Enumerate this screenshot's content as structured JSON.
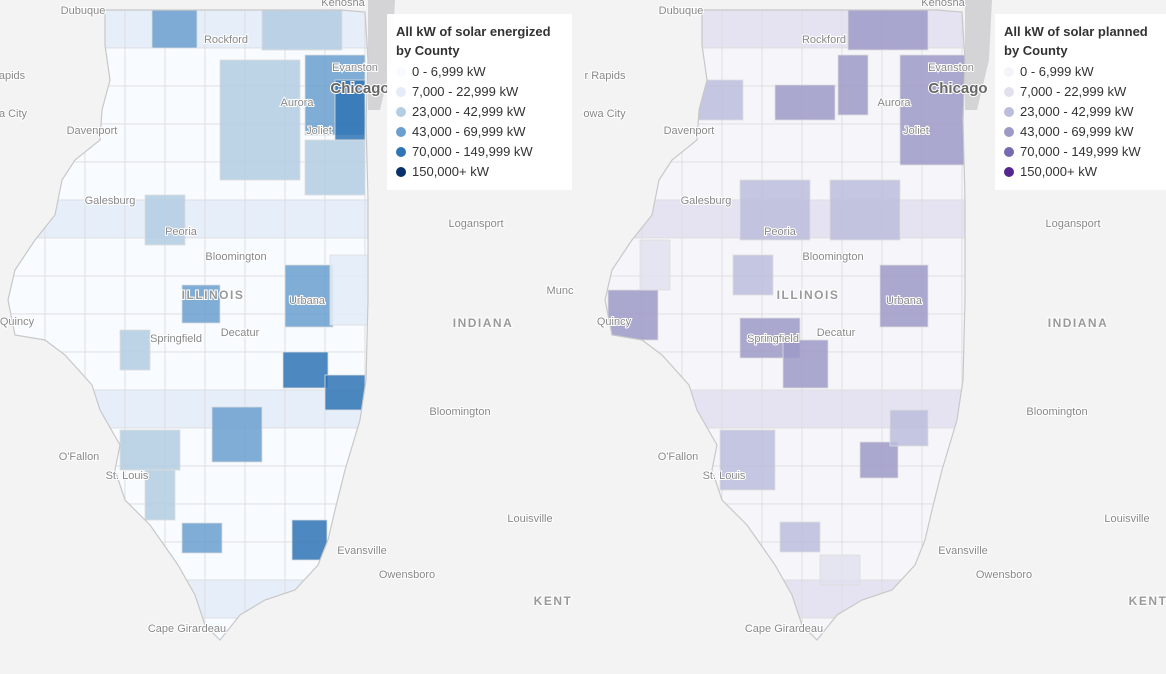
{
  "maps": [
    {
      "legend": {
        "title": "All kW of solar energized by County",
        "items": [
          {
            "label": "0 - 6,999 kW",
            "color": "#f7fbff"
          },
          {
            "label": "7,000 - 22,999 kW",
            "color": "#e3ecf8"
          },
          {
            "label": "23,000 - 42,999 kW",
            "color": "#b3cde3"
          },
          {
            "label": "43,000 - 69,999 kW",
            "color": "#6a9fcf"
          },
          {
            "label": "70,000 - 149,999 kW",
            "color": "#2f74b5"
          },
          {
            "label": "150,000+ kW",
            "color": "#08306b"
          }
        ]
      },
      "places": [
        "Dubuque",
        "Kenosha",
        "Rockford",
        "apids",
        "Evanston",
        "Chicago",
        "Aurora",
        "a City",
        "Davenport",
        "Joliet",
        "Galesburg",
        "Logansport",
        "Peoria",
        "Bloomington",
        "ILLINOIS",
        "Munc",
        "Quincy",
        "INDIANA",
        "Springfield",
        "Decatur",
        "Urbana",
        "Bloomington",
        "O'Fallon",
        "St. Louis",
        "Louisville",
        "Evansville",
        "Owensboro",
        "KENT",
        "Cape Girardeau"
      ]
    },
    {
      "legend": {
        "title": "All kW of solar planned by County",
        "items": [
          {
            "label": "0 - 6,999 kW",
            "color": "#f5f4f9"
          },
          {
            "label": "7,000 - 22,999 kW",
            "color": "#e2e0ef"
          },
          {
            "label": "23,000 - 42,999 kW",
            "color": "#bcbddc"
          },
          {
            "label": "43,000 - 69,999 kW",
            "color": "#9e9ac8"
          },
          {
            "label": "70,000 - 149,999 kW",
            "color": "#756bb1"
          },
          {
            "label": "150,000+ kW",
            "color": "#54278f"
          }
        ]
      },
      "places": [
        "Dubuque",
        "Kenosha",
        "r Rapids",
        "Rockford",
        "Iowa City",
        "Evanston",
        "Chicago",
        "Davenport",
        "Aurora",
        "Joliet",
        "Galesburg",
        "Logansport",
        "Peoria",
        "Bloomington",
        "ILLINOIS",
        "Quincy",
        "INDIANA",
        "Springfield",
        "Decatur",
        "Urbana",
        "Bloomington",
        "O'Fallon",
        "St. Louis",
        "Louisville",
        "Evansville",
        "Owensboro",
        "KENT",
        "Cape Girardeau"
      ]
    }
  ]
}
